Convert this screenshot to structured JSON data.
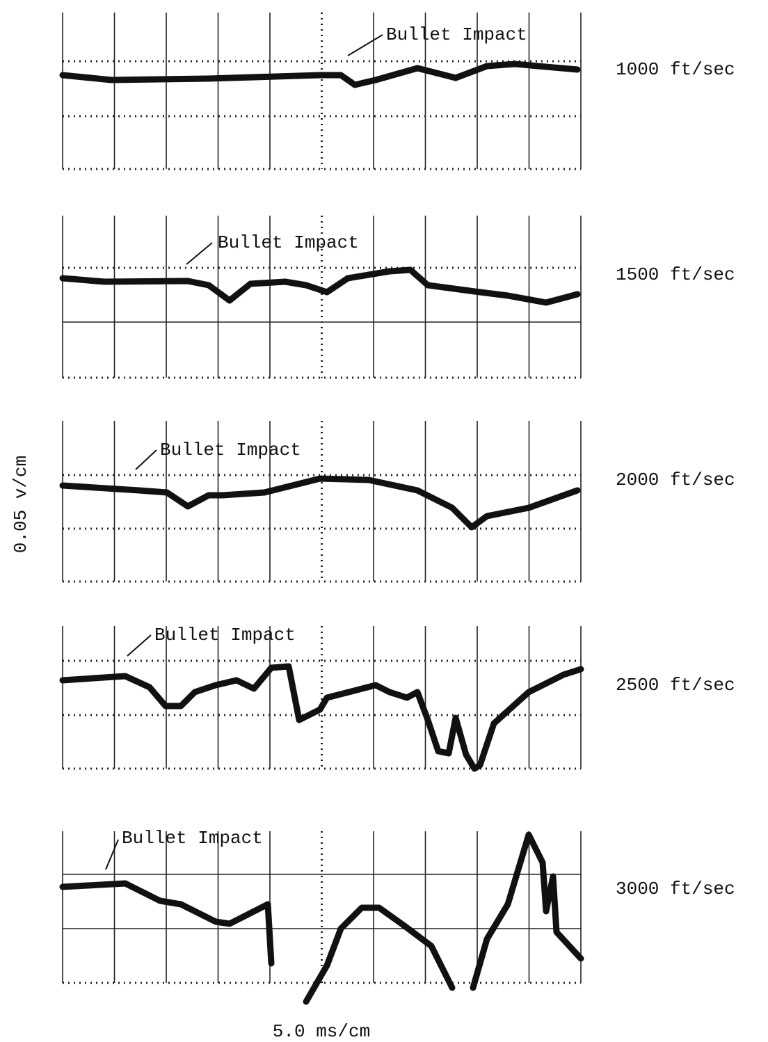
{
  "panels": [
    {
      "annotation": "Bullet Impact",
      "speed": "1000 ft/sec"
    },
    {
      "annotation": "Bullet Impact",
      "speed": "1500 ft/sec"
    },
    {
      "annotation": "Bullet Impact",
      "speed": "2000 ft/sec"
    },
    {
      "annotation": "Bullet Impact",
      "speed": "2500 ft/sec"
    },
    {
      "annotation": "Bullet Impact",
      "speed": "3000 ft/sec"
    }
  ],
  "y_axis_label": "0.05 v/cm",
  "x_axis_label": "5.0 ms/cm"
}
